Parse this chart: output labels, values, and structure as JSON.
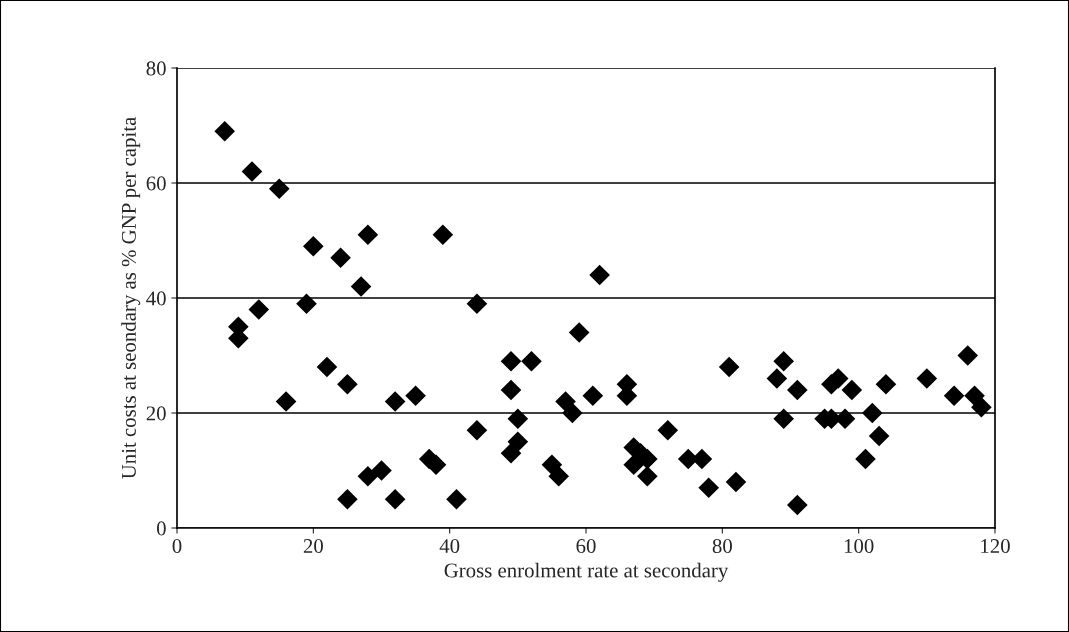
{
  "chart_data": {
    "type": "scatter",
    "xlabel": "Gross enrolment rate at secondary",
    "ylabel": "Unit costs at seondary as % GNP per capita",
    "x": [
      7,
      11,
      15,
      9,
      9,
      12,
      16,
      20,
      19,
      22,
      24,
      25,
      25,
      27,
      28,
      28,
      30,
      32,
      32,
      35,
      37,
      38,
      39,
      41,
      44,
      44,
      49,
      49,
      49,
      50,
      50,
      52,
      55,
      56,
      57,
      58,
      59,
      61,
      62,
      66,
      66,
      67,
      67,
      68,
      69,
      69,
      72,
      75,
      77,
      78,
      81,
      82,
      88,
      89,
      89,
      91,
      91,
      95,
      96,
      96,
      97,
      98,
      99,
      101,
      102,
      103,
      104,
      110,
      114,
      116,
      117,
      118
    ],
    "series": [
      {
        "color": "#000000",
        "values": [
          69,
          62,
          59,
          35,
          33,
          38,
          22,
          49,
          39,
          28,
          47,
          25,
          5,
          42,
          51,
          9,
          10,
          22,
          5,
          23,
          12,
          11,
          51,
          5,
          39,
          17,
          29,
          24,
          13,
          15,
          19,
          29,
          11,
          9,
          22,
          20,
          34,
          23,
          44,
          25,
          23,
          14,
          11,
          13,
          12,
          9,
          17,
          12,
          12,
          7,
          28,
          8,
          26,
          29,
          19,
          24,
          4,
          19,
          25,
          19,
          26,
          19,
          24,
          12,
          20,
          16,
          25,
          26,
          23,
          30,
          23,
          21
        ]
      }
    ],
    "xlim": [
      0,
      120
    ],
    "xticks": [
      0,
      20,
      40,
      60,
      80,
      100,
      120
    ],
    "ylim": [
      0,
      80
    ],
    "yticks": [
      0,
      20,
      40,
      60,
      80
    ],
    "grid": "y",
    "marker": "diamond"
  }
}
